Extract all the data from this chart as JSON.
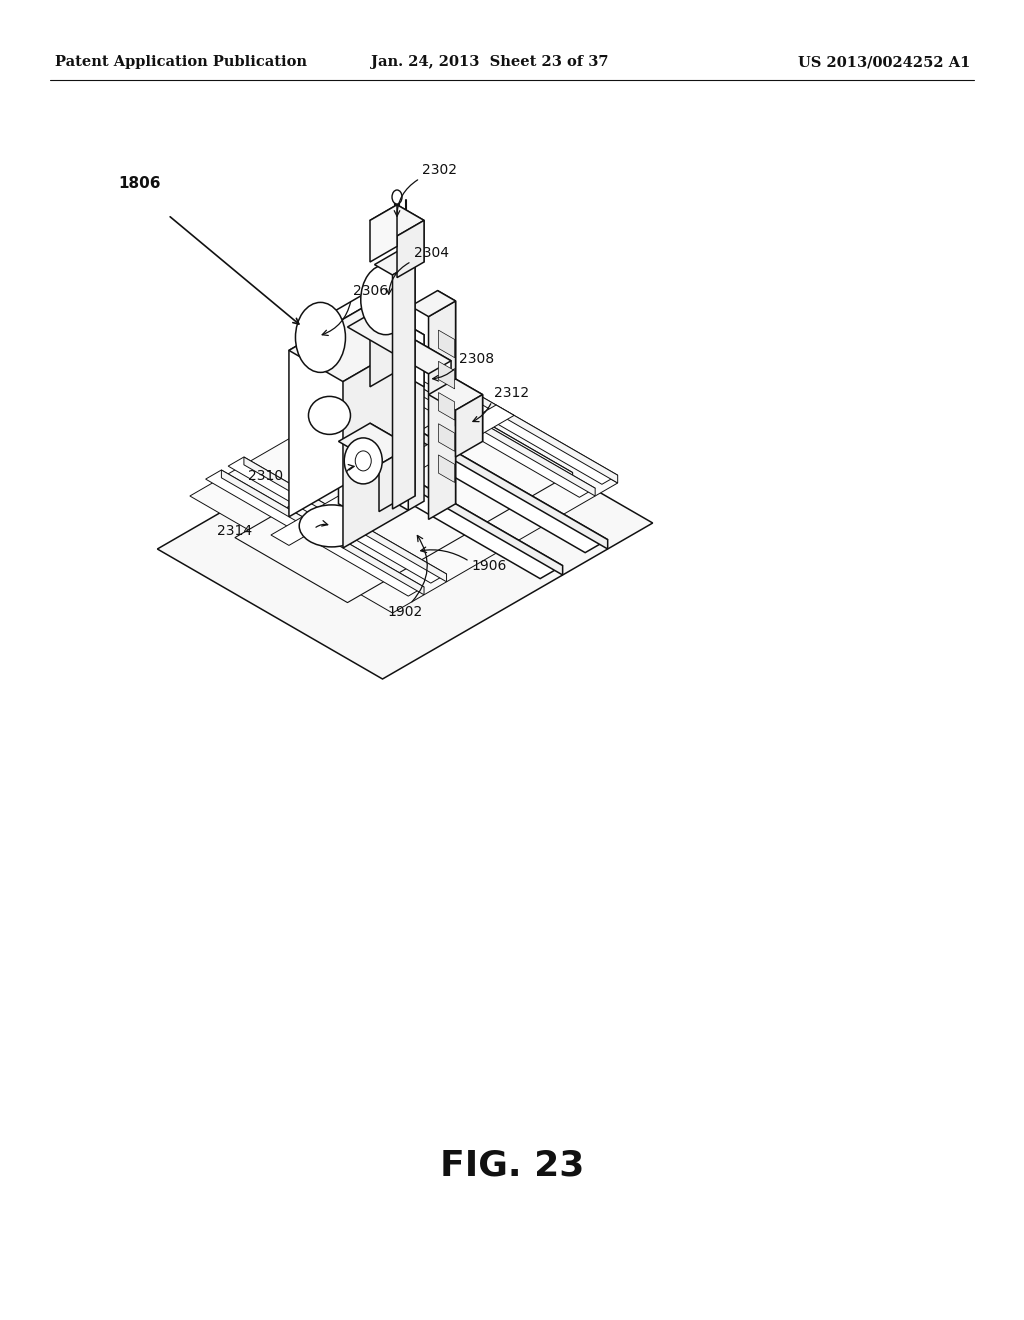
{
  "background_color": "#ffffff",
  "header_left": "Patent Application Publication",
  "header_center": "Jan. 24, 2013  Sheet 23 of 37",
  "header_right": "US 2013/0024252 A1",
  "figure_label": "FIG. 23",
  "header_fontsize": 10.5,
  "figure_label_fontsize": 26,
  "line_color": "#111111",
  "line_width": 1.1,
  "fig_width": 10.24,
  "fig_height": 13.2,
  "dpi": 100
}
